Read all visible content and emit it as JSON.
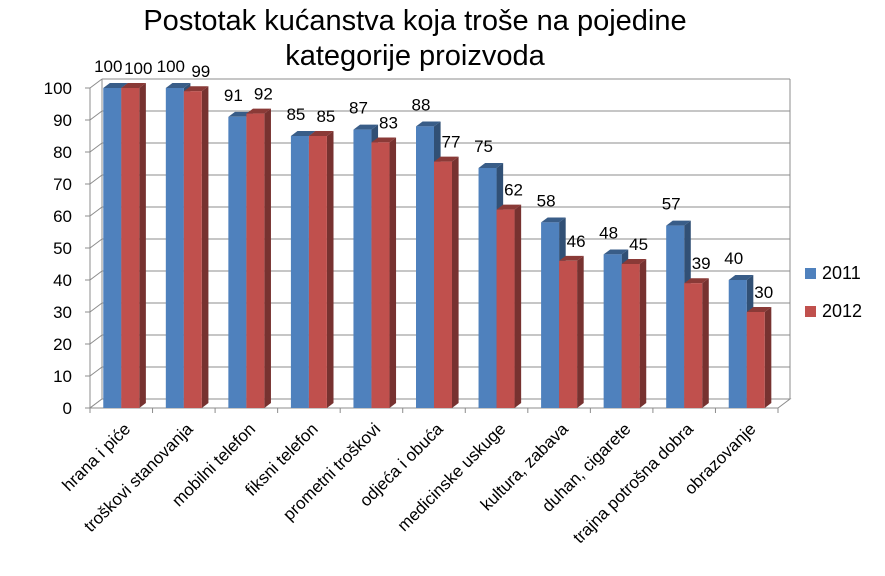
{
  "chart_data": {
    "type": "bar",
    "title_lines": [
      "Postotak kućanstva koja troše na pojedine",
      "kategorije proizvoda"
    ],
    "categories": [
      "hrana i piće",
      "troškovi stanovanja",
      "mobilni telefon",
      "fiksni telefon",
      "prometni troškovi",
      "odjeća i obuća",
      "medicinske uskuge",
      "kultura, zabava",
      "duhan, cigarete",
      "trajna potrošna dobra",
      "obrazovanje"
    ],
    "series": [
      {
        "name": "2011",
        "values": [
          100,
          100,
          91,
          85,
          87,
          88,
          75,
          58,
          48,
          57,
          40
        ],
        "color": "#4f81bd"
      },
      {
        "name": "2012",
        "values": [
          100,
          99,
          92,
          85,
          83,
          77,
          62,
          46,
          45,
          39,
          30
        ],
        "color": "#c0504d"
      }
    ],
    "ylim": [
      0,
      100
    ],
    "yticks": [
      "0",
      "10",
      "20",
      "30",
      "40",
      "50",
      "60",
      "70",
      "80",
      "90",
      "100"
    ],
    "grid": true,
    "legend": "right",
    "xlabel": "",
    "ylabel": ""
  }
}
